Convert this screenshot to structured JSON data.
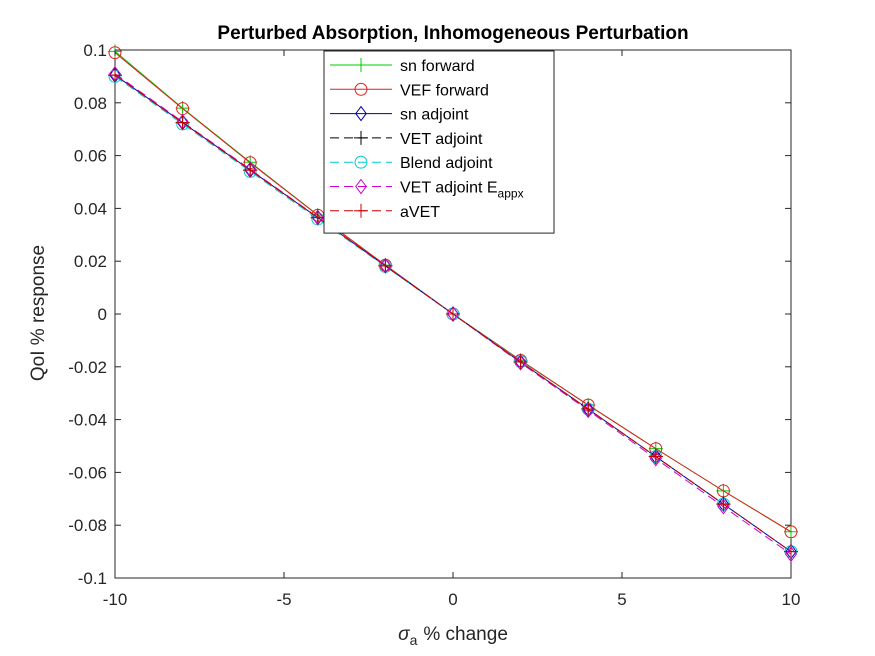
{
  "chart_data": {
    "type": "line",
    "title": "Perturbed Absorption, Inhomogeneous Perturbation",
    "xlabel": "% change",
    "xlabel_symbol": "σ",
    "xlabel_subscript": "a",
    "ylabel": "QoI % response",
    "xlim": [
      -10,
      10
    ],
    "ylim": [
      -0.1,
      0.1
    ],
    "x_ticks": [
      -10,
      -5,
      0,
      5,
      10
    ],
    "x_tick_labels": [
      "-10",
      "-5",
      "0",
      "5",
      "10"
    ],
    "y_ticks": [
      -0.1,
      -0.08,
      -0.06,
      -0.04,
      -0.02,
      0,
      0.02,
      0.04,
      0.06,
      0.08,
      0.1
    ],
    "y_tick_labels": [
      "-0.1",
      "-0.08",
      "-0.06",
      "-0.04",
      "-0.02",
      "0",
      "0.02",
      "0.04",
      "0.06",
      "0.08",
      "0.1"
    ],
    "grid": false,
    "legend_position": "top-center",
    "x": [
      -10,
      -8,
      -6,
      -4,
      -2,
      0,
      2,
      4,
      6,
      8,
      10
    ],
    "series": [
      {
        "name": "sn forward",
        "color": "#00cc00",
        "marker": "plus",
        "dash": "solid",
        "values": [
          0.0995,
          0.078,
          0.0575,
          0.0375,
          0.0185,
          0,
          -0.0175,
          -0.0345,
          -0.051,
          -0.067,
          -0.0825
        ]
      },
      {
        "name": "VEF forward",
        "color": "#e02020",
        "marker": "circle",
        "dash": "solid",
        "values": [
          0.099,
          0.0778,
          0.0573,
          0.0374,
          0.0185,
          0,
          -0.0176,
          -0.0345,
          -0.051,
          -0.067,
          -0.0825
        ]
      },
      {
        "name": "sn adjoint",
        "color": "#0000aa",
        "marker": "diamond",
        "dash": "solid",
        "values": [
          0.0905,
          0.0725,
          0.0545,
          0.0365,
          0.0182,
          0,
          -0.0182,
          -0.036,
          -0.054,
          -0.072,
          -0.09
        ]
      },
      {
        "name": "VET adjoint",
        "color": "#000000",
        "marker": "plus",
        "dash": "dashed",
        "values": [
          0.0905,
          0.0725,
          0.0545,
          0.0365,
          0.0182,
          0,
          -0.0182,
          -0.036,
          -0.054,
          -0.072,
          -0.09
        ]
      },
      {
        "name": "Blend adjoint",
        "color": "#00cccc",
        "marker": "circle",
        "dash": "dashed",
        "values": [
          0.09,
          0.072,
          0.054,
          0.036,
          0.018,
          0,
          -0.018,
          -0.036,
          -0.054,
          -0.072,
          -0.09
        ]
      },
      {
        "name": "VET adjoint E",
        "name_subscript": "appx",
        "color": "#cc00cc",
        "marker": "diamond",
        "dash": "dashed",
        "values": [
          0.091,
          0.0728,
          0.0548,
          0.0366,
          0.0183,
          0,
          -0.0185,
          -0.0365,
          -0.0548,
          -0.073,
          -0.091
        ]
      },
      {
        "name": "aVET",
        "color": "#cc0000",
        "marker": "plus",
        "dash": "dashed",
        "values": [
          0.0905,
          0.0725,
          0.0545,
          0.0365,
          0.0182,
          0,
          -0.0182,
          -0.036,
          -0.054,
          -0.072,
          -0.09
        ]
      }
    ]
  }
}
